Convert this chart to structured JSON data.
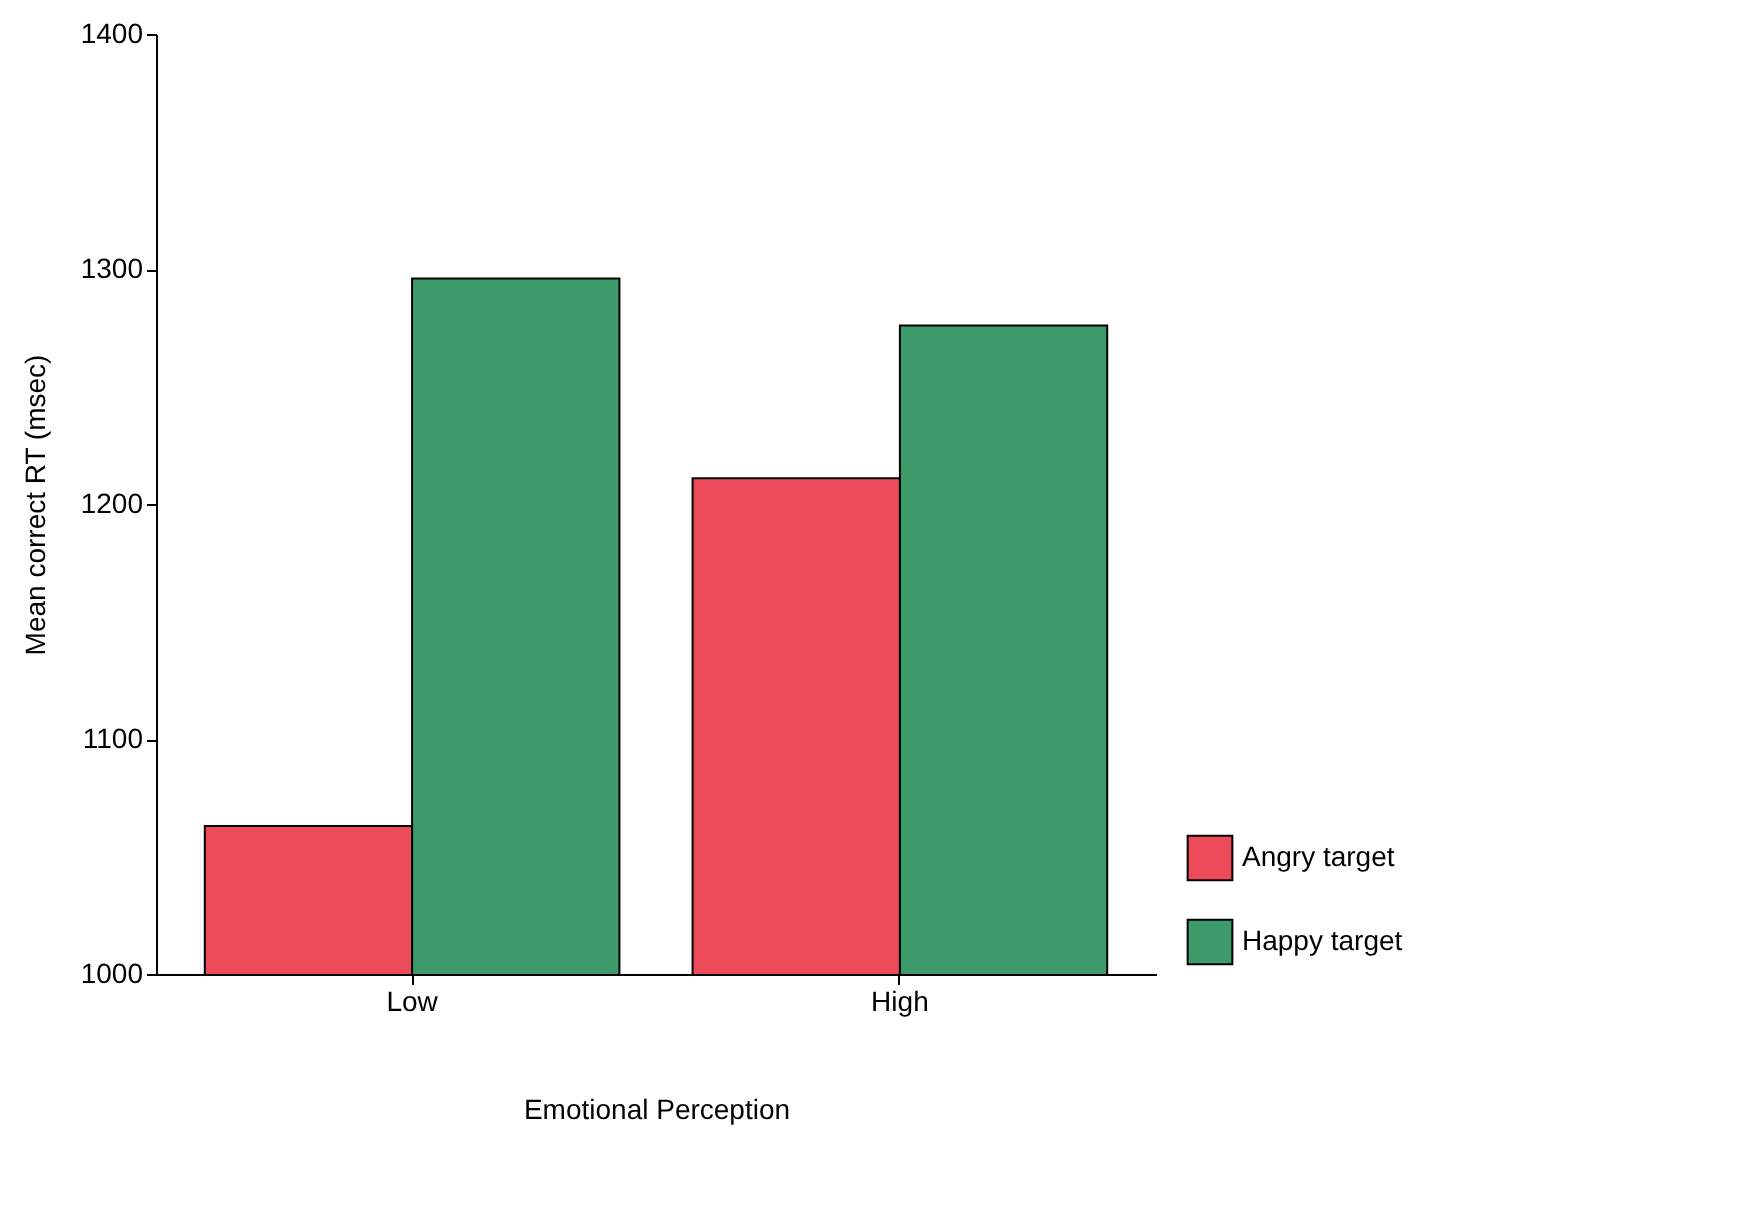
{
  "chart_data": {
    "type": "bar",
    "xlabel": "Emotional Perception",
    "ylabel": "Mean correct RT (msec)",
    "categories": [
      "Low",
      "High"
    ],
    "series": [
      {
        "name": "Angry target",
        "color": "#ee4b5a",
        "values": [
          1063,
          1211
        ]
      },
      {
        "name": "Happy target",
        "color": "#3d9a6b",
        "values": [
          1296,
          1276
        ]
      }
    ],
    "ylim": [
      1000,
      1400
    ],
    "yticks": [
      1000,
      1100,
      1200,
      1300,
      1400
    ],
    "grid": false,
    "legend": "bottom right"
  }
}
